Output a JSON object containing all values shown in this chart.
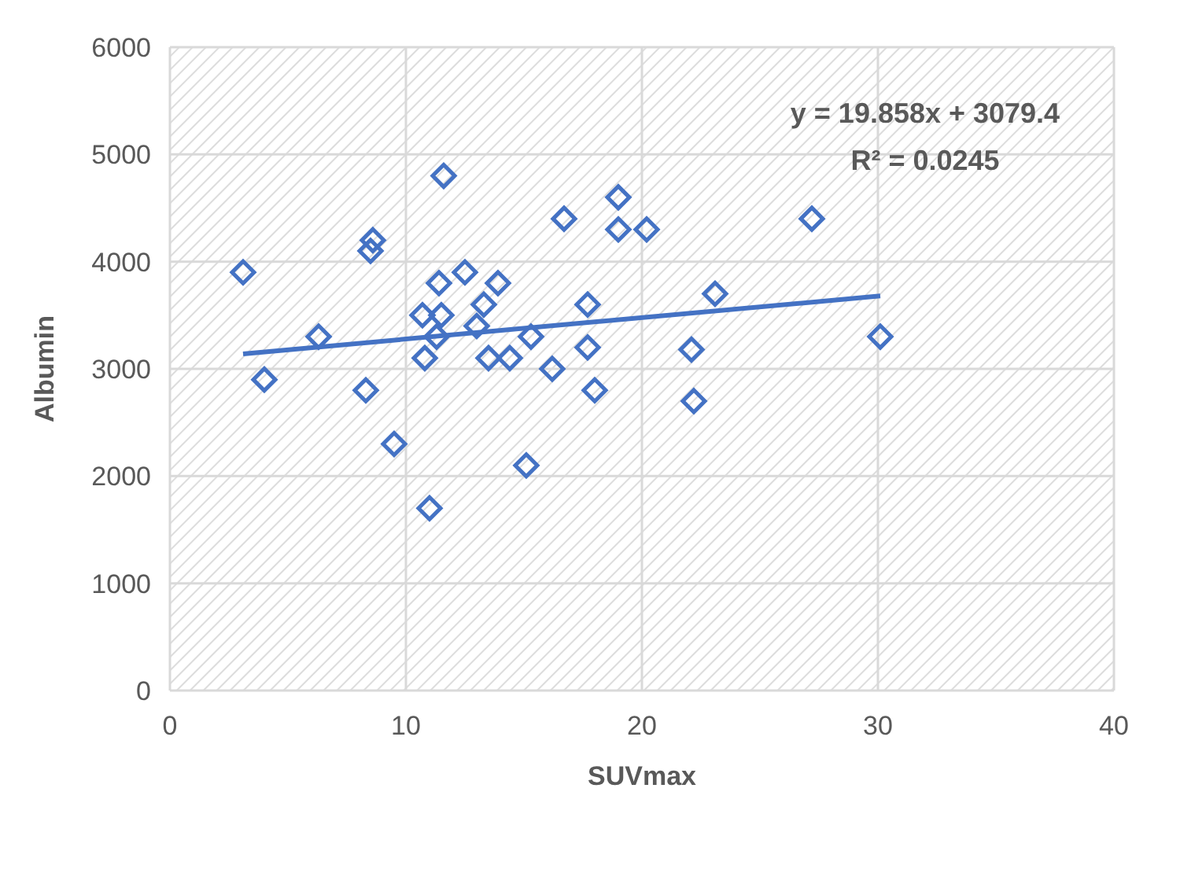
{
  "chart_data": {
    "type": "scatter",
    "xlabel": "SUVmax",
    "ylabel": "Albumin",
    "xlim": [
      0,
      40
    ],
    "xticks": [
      0,
      10,
      20,
      30,
      40
    ],
    "ylim": [
      0,
      6000
    ],
    "yticks": [
      0,
      1000,
      2000,
      3000,
      4000,
      5000,
      6000
    ],
    "grid": true,
    "marker": "diamond",
    "legend": false,
    "annotations": [
      "y = 19.858x + 3079.4",
      "R² = 0.0245"
    ],
    "series": [
      {
        "type": "scatter",
        "color": "#4472c4",
        "x": [
          3.1,
          4.0,
          6.3,
          8.3,
          8.6,
          8.5,
          9.5,
          11.0,
          10.7,
          10.8,
          11.4,
          11.5,
          11.3,
          11.6,
          12.5,
          13.0,
          13.3,
          13.5,
          13.9,
          14.4,
          15.1,
          15.3,
          16.2,
          16.7,
          17.7,
          17.7,
          18.0,
          19.0,
          19.0,
          20.2,
          22.1,
          22.2,
          23.1,
          27.2,
          30.1
        ],
        "values": [
          3900,
          2900,
          3300,
          2800,
          4200,
          4100,
          2300,
          1700,
          3500,
          3100,
          3800,
          3500,
          3300,
          4800,
          3900,
          3400,
          3600,
          3100,
          3800,
          3100,
          2100,
          3300,
          3000,
          4400,
          3600,
          3200,
          2800,
          4600,
          4300,
          4300,
          3180,
          2700,
          3700,
          4400,
          3300
        ]
      },
      {
        "type": "line",
        "color": "#4472c4",
        "marker": "none",
        "x": [
          3.1,
          30.1
        ],
        "values": [
          3140,
          3680
        ]
      }
    ]
  }
}
